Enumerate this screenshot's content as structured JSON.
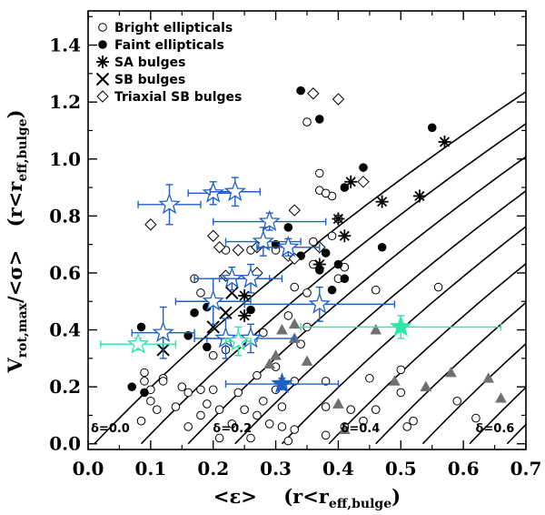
{
  "chart_data": {
    "type": "scatter",
    "xlabel_main": "<ε>",
    "xlabel_cond": "(r<r",
    "xlabel_sub": "eff,bulge",
    "xlabel_close": ")",
    "ylabel_main": "V",
    "ylabel_sub1": "rot,max",
    "ylabel_mid": "/<σ>",
    "ylabel_cond": "(r<r",
    "ylabel_sub2": "eff,bulge",
    "ylabel_close": ")",
    "xlim": [
      0.0,
      0.7
    ],
    "ylim": [
      -0.02,
      1.52
    ],
    "x_ticks": [
      0.0,
      0.1,
      0.2,
      0.3,
      0.4,
      0.5,
      0.6,
      0.7
    ],
    "x_tick_labels": [
      "0.0",
      "0.1",
      "0.2",
      "0.3",
      "0.4",
      "0.5",
      "0.6",
      "0.7"
    ],
    "y_ticks": [
      0.0,
      0.2,
      0.4,
      0.6,
      0.8,
      1.0,
      1.2,
      1.4
    ],
    "y_tick_labels": [
      "0.0",
      "0.2",
      "0.4",
      "0.6",
      "0.8",
      "1.0",
      "1.2",
      "1.4"
    ],
    "legend": [
      {
        "symbol": "open-circle",
        "label": "Bright ellipticals"
      },
      {
        "symbol": "filled-circle",
        "label": "Faint ellipticals"
      },
      {
        "symbol": "asterisk",
        "label": "SA bulges"
      },
      {
        "symbol": "cross",
        "label": "SB bulges"
      },
      {
        "symbol": "diamond",
        "label": "Triaxial SB bulges"
      }
    ],
    "delta_labels": [
      {
        "text": "δ=0.0",
        "x": 0.0,
        "y": 0.04
      },
      {
        "text": "δ=0.2",
        "x": 0.195,
        "y": 0.04
      },
      {
        "text": "δ=0.4",
        "x": 0.4,
        "y": 0.04
      },
      {
        "text": "δ=0.6",
        "x": 0.615,
        "y": 0.04
      }
    ],
    "curves_start_x": [
      0.01,
      0.085,
      0.16,
      0.235,
      0.31,
      0.385,
      0.46,
      0.535,
      0.61,
      0.67
    ],
    "curve_slope": 2.3,
    "curve_curvature": 0.8,
    "series": {
      "bright_ellipticals": [
        [
          0.085,
          0.08
        ],
        [
          0.09,
          0.25
        ],
        [
          0.09,
          0.22
        ],
        [
          0.1,
          0.19
        ],
        [
          0.1,
          0.15
        ],
        [
          0.11,
          0.12
        ],
        [
          0.12,
          0.23
        ],
        [
          0.12,
          0.22
        ],
        [
          0.14,
          0.13
        ],
        [
          0.15,
          0.2
        ],
        [
          0.16,
          0.06
        ],
        [
          0.16,
          0.18
        ],
        [
          0.18,
          0.19
        ],
        [
          0.18,
          0.1
        ],
        [
          0.19,
          0.14
        ],
        [
          0.2,
          0.31
        ],
        [
          0.2,
          0.19
        ],
        [
          0.21,
          0.12
        ],
        [
          0.21,
          0.02
        ],
        [
          0.22,
          0.33
        ],
        [
          0.23,
          0.07
        ],
        [
          0.24,
          0.18
        ],
        [
          0.25,
          0.12
        ],
        [
          0.26,
          0.02
        ],
        [
          0.27,
          0.1
        ],
        [
          0.27,
          0.24
        ],
        [
          0.28,
          0.15
        ],
        [
          0.28,
          0.39
        ],
        [
          0.29,
          0.07
        ],
        [
          0.3,
          0.27
        ],
        [
          0.3,
          0.19
        ],
        [
          0.31,
          0.13
        ],
        [
          0.31,
          0.06
        ],
        [
          0.32,
          0.45
        ],
        [
          0.32,
          0.01
        ],
        [
          0.33,
          0.05
        ],
        [
          0.33,
          0.22
        ],
        [
          0.33,
          0.55
        ],
        [
          0.34,
          0.35
        ],
        [
          0.35,
          0.41
        ],
        [
          0.35,
          0.53
        ],
        [
          0.36,
          0.63
        ],
        [
          0.36,
          0.71
        ],
        [
          0.37,
          0.95
        ],
        [
          0.38,
          0.22
        ],
        [
          0.38,
          0.13
        ],
        [
          0.38,
          0.03
        ],
        [
          0.39,
          0.73
        ],
        [
          0.39,
          0.87
        ],
        [
          0.4,
          0.58
        ],
        [
          0.4,
          0.79
        ],
        [
          0.41,
          0.62
        ],
        [
          0.41,
          0.06
        ],
        [
          0.42,
          0.12
        ],
        [
          0.44,
          0.08
        ],
        [
          0.45,
          0.23
        ],
        [
          0.46,
          0.54
        ],
        [
          0.46,
          0.12
        ],
        [
          0.5,
          0.26
        ],
        [
          0.5,
          0.18
        ],
        [
          0.51,
          0.06
        ],
        [
          0.52,
          0.08
        ],
        [
          0.56,
          0.55
        ],
        [
          0.59,
          0.15
        ],
        [
          0.62,
          0.09
        ],
        [
          0.35,
          1.13
        ],
        [
          0.37,
          0.89
        ],
        [
          0.38,
          0.88
        ],
        [
          0.26,
          0.68
        ],
        [
          0.27,
          0.69
        ],
        [
          0.3,
          0.68
        ],
        [
          0.22,
          0.68
        ],
        [
          0.17,
          0.58
        ],
        [
          0.18,
          0.53
        ]
      ],
      "faint_ellipticals": [
        [
          0.07,
          0.2
        ],
        [
          0.085,
          0.41
        ],
        [
          0.09,
          0.18
        ],
        [
          0.16,
          0.38
        ],
        [
          0.17,
          0.46
        ],
        [
          0.19,
          0.48
        ],
        [
          0.19,
          0.34
        ],
        [
          0.26,
          0.47
        ],
        [
          0.3,
          0.7
        ],
        [
          0.32,
          0.76
        ],
        [
          0.32,
          0.69
        ],
        [
          0.34,
          0.66
        ],
        [
          0.34,
          1.24
        ],
        [
          0.37,
          1.14
        ],
        [
          0.37,
          0.61
        ],
        [
          0.38,
          0.67
        ],
        [
          0.39,
          0.54
        ],
        [
          0.4,
          0.63
        ],
        [
          0.41,
          0.58
        ],
        [
          0.41,
          0.9
        ],
        [
          0.44,
          0.97
        ],
        [
          0.47,
          0.69
        ],
        [
          0.55,
          1.11
        ]
      ],
      "sa_bulges": [
        [
          0.25,
          0.52
        ],
        [
          0.25,
          0.45
        ],
        [
          0.37,
          0.63
        ],
        [
          0.4,
          0.79
        ],
        [
          0.41,
          0.73
        ],
        [
          0.42,
          0.92
        ],
        [
          0.47,
          0.85
        ],
        [
          0.53,
          0.87
        ],
        [
          0.57,
          1.06
        ]
      ],
      "sb_bulges": [
        [
          0.12,
          0.33
        ],
        [
          0.2,
          0.41
        ],
        [
          0.22,
          0.46
        ],
        [
          0.23,
          0.53
        ]
      ],
      "triaxial_sb_bulges": [
        [
          0.1,
          0.77
        ],
        [
          0.2,
          0.73
        ],
        [
          0.21,
          0.69
        ],
        [
          0.22,
          0.59
        ],
        [
          0.23,
          0.55
        ],
        [
          0.24,
          0.68
        ],
        [
          0.27,
          0.6
        ],
        [
          0.27,
          0.69
        ],
        [
          0.32,
          0.66
        ],
        [
          0.33,
          0.65
        ],
        [
          0.33,
          0.82
        ],
        [
          0.37,
          0.69
        ],
        [
          0.4,
          1.21
        ],
        [
          0.44,
          0.92
        ],
        [
          0.36,
          1.23
        ]
      ],
      "gray_triangles": [
        [
          0.29,
          0.28
        ],
        [
          0.3,
          0.31
        ],
        [
          0.31,
          0.4
        ],
        [
          0.33,
          0.37
        ],
        [
          0.33,
          0.42
        ],
        [
          0.35,
          0.29
        ],
        [
          0.4,
          0.14
        ],
        [
          0.41,
          0.05
        ],
        [
          0.46,
          0.4
        ],
        [
          0.49,
          0.22
        ],
        [
          0.54,
          0.2
        ],
        [
          0.58,
          0.25
        ],
        [
          0.64,
          0.23
        ],
        [
          0.66,
          0.16
        ]
      ],
      "blue_open_stars": [
        {
          "x": 0.13,
          "y": 0.84,
          "xerr": 0.05,
          "yerr": 0.07
        },
        {
          "x": 0.2,
          "y": 0.88,
          "xerr": 0.04,
          "yerr": 0.04
        },
        {
          "x": 0.235,
          "y": 0.885,
          "xerr": 0.04,
          "yerr": 0.05
        },
        {
          "x": 0.29,
          "y": 0.78,
          "xerr": 0.09,
          "yerr": 0.03
        },
        {
          "x": 0.28,
          "y": 0.71,
          "xerr": 0.06,
          "yerr": 0.05
        },
        {
          "x": 0.32,
          "y": 0.69,
          "xerr": 0.05,
          "yerr": 0.03
        },
        {
          "x": 0.23,
          "y": 0.58,
          "xerr": 0.06,
          "yerr": 0.04
        },
        {
          "x": 0.26,
          "y": 0.58,
          "xerr": 0.05,
          "yerr": 0.05
        },
        {
          "x": 0.2,
          "y": 0.5,
          "xerr": 0.06,
          "yerr": 0.08
        },
        {
          "x": 0.37,
          "y": 0.49,
          "xerr": 0.12,
          "yerr": 0.06
        },
        {
          "x": 0.12,
          "y": 0.39,
          "xerr": 0.05,
          "yerr": 0.09
        },
        {
          "x": 0.22,
          "y": 0.37,
          "xerr": 0.05,
          "yerr": 0.07
        },
        {
          "x": 0.26,
          "y": 0.37,
          "xerr": 0.07,
          "yerr": 0.05
        }
      ],
      "green_open_stars": [
        {
          "x": 0.08,
          "y": 0.35,
          "xerr": 0.06,
          "yerr": 0.02
        },
        {
          "x": 0.24,
          "y": 0.36,
          "xerr": 0.02,
          "yerr": 0.05
        }
      ],
      "blue_filled_star": {
        "x": 0.31,
        "y": 0.21,
        "xerr": 0.09,
        "yerr": 0.02
      },
      "green_filled_star": {
        "x": 0.5,
        "y": 0.41,
        "xerr": 0.16,
        "yerr": 0.04
      }
    },
    "colors": {
      "blue": "#1e5fc8",
      "green": "#2ee6a6",
      "gray": "#707070"
    }
  }
}
